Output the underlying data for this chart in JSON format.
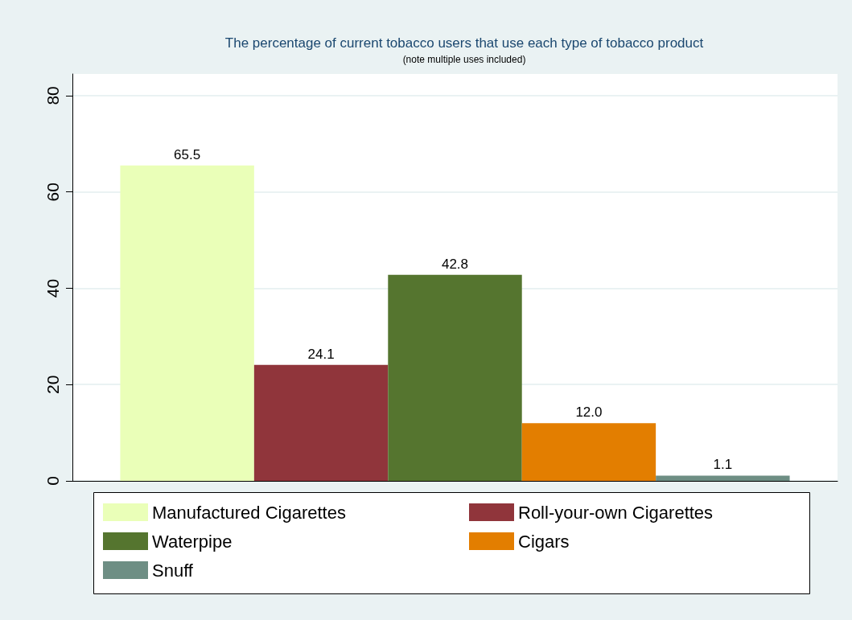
{
  "chart_data": {
    "type": "bar",
    "title": "The percentage of current tobacco users that use each type of tobacco product",
    "subtitle": "(note multiple uses included)",
    "categories": [
      null
    ],
    "series": [
      {
        "name": "Manufactured Cigarettes",
        "color": "#eaffb8",
        "values": [
          65.5
        ],
        "value_labels": [
          "65.5"
        ]
      },
      {
        "name": "Roll-your-own Cigarettes",
        "color": "#90353b",
        "values": [
          24.1
        ],
        "value_labels": [
          "24.1"
        ]
      },
      {
        "name": "Waterpipe",
        "color": "#55752f",
        "values": [
          42.8
        ],
        "value_labels": [
          "42.8"
        ]
      },
      {
        "name": "Cigars",
        "color": "#e37e00",
        "values": [
          12.0
        ],
        "value_labels": [
          "12.0"
        ]
      },
      {
        "name": "Snuff",
        "color": "#6e8e84",
        "values": [
          1.1
        ],
        "value_labels": [
          "1.1"
        ]
      }
    ],
    "ylim": [
      0,
      84.5
    ],
    "yticks": [
      0,
      20,
      40,
      60,
      80
    ],
    "grid": "y",
    "legend": "bottom"
  }
}
